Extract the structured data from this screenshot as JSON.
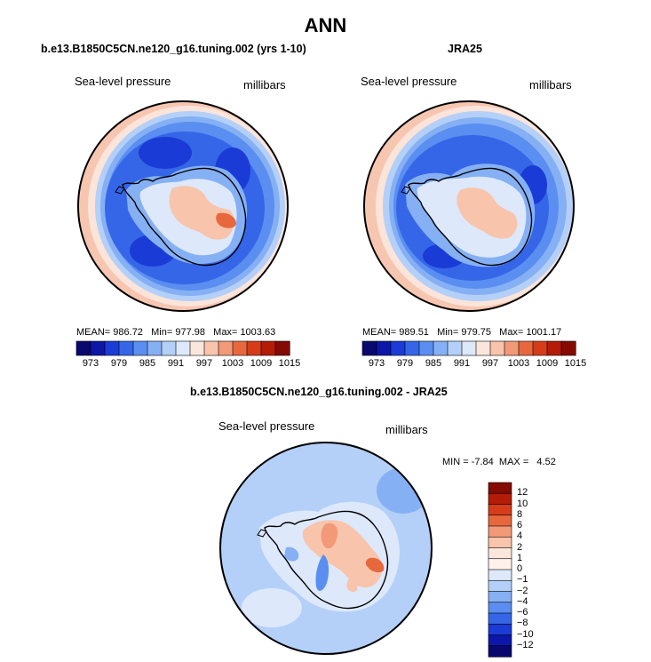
{
  "title": "ANN",
  "panels": [
    {
      "title": "b.e13.B1850C5CN.ne120_g16.tuning.002 (yrs 1-10)",
      "variable": "Sea-level pressure",
      "units": "millibars",
      "stats": {
        "mean_label": "MEAN=",
        "mean": "986.72",
        "min_label": "Min=",
        "min": "977.98",
        "max_label": "Max=",
        "max": "1003.63"
      }
    },
    {
      "title": "JRA25",
      "variable": "Sea-level pressure",
      "units": "millibars",
      "stats": {
        "mean_label": "MEAN=",
        "mean": "989.51",
        "min_label": "Min=",
        "min": "979.75",
        "max_label": "Max=",
        "max": "1001.17"
      }
    },
    {
      "title": "b.e13.B1850C5CN.ne120_g16.tuning.002 - JRA25",
      "variable": "Sea-level pressure",
      "units": "millibars",
      "stats": {
        "min_label": "MIN =",
        "min": "-7.84",
        "max_label": "MAX =",
        "max": "4.52"
      }
    }
  ],
  "colorbar_abs": {
    "ticks": [
      "973",
      "979",
      "985",
      "991",
      "997",
      "1003",
      "1009",
      "1015"
    ],
    "colors": [
      "#08086e",
      "#0c16a8",
      "#1a3bd6",
      "#3566e8",
      "#5a8ef0",
      "#86b0f4",
      "#b4d0f8",
      "#dde8fb",
      "#fbe6dc",
      "#f8c4ab",
      "#f29a78",
      "#e8683e",
      "#d63c1a",
      "#b41c08",
      "#850a04"
    ]
  },
  "colorbar_diff": {
    "labels": [
      "12",
      "10",
      "8",
      "6",
      "4",
      "2",
      "1",
      "0",
      "-1",
      "-2",
      "-4",
      "-6",
      "-8",
      "-10",
      "-12"
    ],
    "colors": [
      "#850a04",
      "#b41c08",
      "#d63c1a",
      "#e8683e",
      "#f29a78",
      "#f8c4ab",
      "#fbe6dc",
      "#fdf1ea",
      "#dde8fb",
      "#b4d0f8",
      "#86b0f4",
      "#5a8ef0",
      "#3566e8",
      "#1a3bd6",
      "#0c16a8",
      "#08086e"
    ]
  },
  "chart_data": [
    {
      "type": "heatmap",
      "title": "b.e13.B1850C5CN.ne120_g16.tuning.002 (yrs 1-10)",
      "variable": "Sea-level pressure",
      "units": "millibars",
      "mean": 986.72,
      "min": 977.98,
      "max": 1003.63,
      "contour_levels": [
        973,
        976,
        979,
        982,
        985,
        988,
        991,
        994,
        997,
        1000,
        1003,
        1006,
        1009,
        1012,
        1015
      ]
    },
    {
      "type": "heatmap",
      "title": "JRA25",
      "variable": "Sea-level pressure",
      "units": "millibars",
      "mean": 989.51,
      "min": 979.75,
      "max": 1001.17,
      "contour_levels": [
        973,
        976,
        979,
        982,
        985,
        988,
        991,
        994,
        997,
        1000,
        1003,
        1006,
        1009,
        1012,
        1015
      ]
    },
    {
      "type": "heatmap",
      "title": "b.e13.B1850C5CN.ne120_g16.tuning.002 - JRA25",
      "variable": "Sea-level pressure",
      "units": "millibars",
      "min": -7.84,
      "max": 4.52,
      "contour_levels": [
        -12,
        -10,
        -8,
        -6,
        -4,
        -2,
        -1,
        0,
        1,
        2,
        4,
        6,
        8,
        10,
        12
      ]
    }
  ]
}
